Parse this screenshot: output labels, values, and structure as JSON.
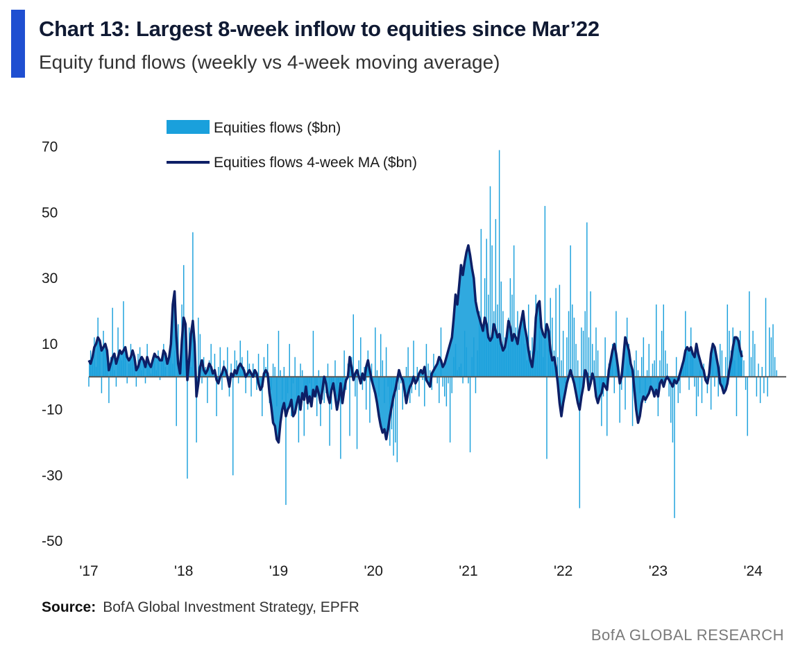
{
  "header": {
    "title": "Chart 13: Largest 8-week inflow to equities since Mar’22",
    "subtitle": "Equity fund flows (weekly vs 4-week moving average)"
  },
  "footer": {
    "source_label": "Source:",
    "source_text": "BofA Global Investment Strategy, EPFR",
    "brand": "BofA GLOBAL RESEARCH"
  },
  "colors": {
    "accent": "#1f4fd1",
    "flows": "#1aa0dc",
    "ma": "#0d1f66",
    "zero_line": "#555555"
  },
  "chart_data": {
    "type": "bar",
    "title": "Chart 13: Largest 8-week inflow to equities since Mar’22",
    "subtitle": "Equity fund flows (weekly vs 4-week moving average)",
    "xlabel": "",
    "ylabel": "",
    "ylim": [
      -50,
      75
    ],
    "yticks": [
      70,
      50,
      30,
      10,
      -10,
      -30,
      -50
    ],
    "xlim": [
      2017,
      2024.35
    ],
    "xticks": [
      {
        "value": 2017,
        "label": "'17"
      },
      {
        "value": 2018,
        "label": "'18"
      },
      {
        "value": 2019,
        "label": "'19"
      },
      {
        "value": 2020,
        "label": "'20"
      },
      {
        "value": 2021,
        "label": "'21"
      },
      {
        "value": 2022,
        "label": "'22"
      },
      {
        "value": 2023,
        "label": "'23"
      },
      {
        "value": 2024,
        "label": "'24"
      }
    ],
    "grid": false,
    "legend_position": "top-left",
    "series": [
      {
        "name": "Equities flows ($bn)",
        "kind": "bar",
        "color": "#1aa0dc",
        "x_start": 2017.0,
        "x_step": 0.01923,
        "values": [
          -3,
          8,
          6,
          12,
          3,
          18,
          10,
          -5,
          14,
          8,
          4,
          -8,
          6,
          21,
          2,
          -3,
          15,
          6,
          5,
          23,
          7,
          -2,
          4,
          10,
          6,
          3,
          -3,
          7,
          9,
          2,
          5,
          -2,
          10,
          4,
          1,
          6,
          5,
          2,
          8,
          -1,
          6,
          10,
          3,
          0,
          7,
          12,
          4,
          8,
          -15,
          16,
          5,
          22,
          34,
          10,
          -31,
          15,
          3,
          44,
          2,
          -20,
          18,
          13,
          -2,
          6,
          3,
          -8,
          5,
          10,
          2,
          7,
          -12,
          3,
          9,
          -4,
          5,
          2,
          9,
          -6,
          4,
          -30,
          8,
          5,
          -2,
          11,
          6,
          3,
          -5,
          8,
          4,
          -6,
          4,
          2,
          -4,
          7,
          0,
          -12,
          6,
          3,
          10,
          -8,
          -4,
          4,
          3,
          -9,
          14,
          2,
          -7,
          3,
          -39,
          -5,
          10,
          -12,
          -2,
          6,
          -9,
          -20,
          4,
          2,
          -18,
          -4,
          -10,
          -2,
          -8,
          14,
          -6,
          -12,
          2,
          -15,
          -7,
          -8,
          -5,
          4,
          -21,
          -10,
          -3,
          5,
          -6,
          -2,
          -25,
          -8,
          8,
          -4,
          4,
          -18,
          6,
          19,
          -6,
          -22,
          5,
          12,
          -4,
          3,
          -10,
          8,
          -14,
          4,
          -2,
          15,
          2,
          -6,
          13,
          5,
          -8,
          9,
          -3,
          -21,
          -16,
          -24,
          -20,
          -26,
          -4,
          -2,
          -10,
          -6,
          3,
          9,
          -8,
          -5,
          11,
          -4,
          3,
          -6,
          2,
          -1,
          -9,
          10,
          4,
          2,
          -4,
          7,
          1,
          -2,
          -8,
          15,
          -3,
          -6,
          -9,
          -2,
          -20,
          -5,
          6,
          10,
          2,
          3,
          4,
          -2,
          14,
          9,
          -2,
          -23,
          6,
          12,
          -5,
          8,
          20,
          45,
          15,
          30,
          42,
          25,
          58,
          40,
          20,
          48,
          22,
          69,
          29,
          20,
          12,
          8,
          18,
          30,
          25,
          40,
          15,
          20,
          10,
          14,
          18,
          10,
          5,
          22,
          8,
          12,
          10,
          25,
          8,
          18,
          14,
          6,
          52,
          -25,
          10,
          24,
          18,
          8,
          27,
          6,
          28,
          5,
          14,
          -2,
          12,
          20,
          40,
          22,
          18,
          10,
          5,
          -40,
          15,
          14,
          20,
          47,
          12,
          26,
          10,
          5,
          15,
          8,
          -5,
          -15,
          -6,
          12,
          -18,
          4,
          6,
          10,
          -5,
          20,
          2,
          -14,
          -4,
          6,
          -10,
          18,
          10,
          2,
          -15,
          5,
          8,
          2,
          -5,
          6,
          12,
          -8,
          2,
          10,
          -3,
          4,
          5,
          22,
          -12,
          5,
          14,
          22,
          8,
          4,
          -6,
          -14,
          -20,
          -43,
          6,
          -8,
          -5,
          4,
          3,
          20,
          8,
          -4,
          15,
          6,
          -3,
          -12,
          -6,
          2,
          -8,
          4,
          0,
          -5,
          3,
          -10,
          6,
          -3,
          2,
          -6,
          10,
          8,
          -4,
          6,
          22,
          14,
          8,
          15,
          5,
          -12,
          12,
          14,
          8,
          5,
          -4,
          -18,
          26,
          6,
          14,
          10,
          -6,
          4,
          -8,
          3,
          -5,
          24,
          -6,
          15,
          12,
          16,
          6,
          2
        ]
      },
      {
        "name": "Equities flows 4-week MA ($bn)",
        "kind": "line",
        "color": "#0d1f66",
        "x_start": 2017.0,
        "x_step": 0.01923,
        "values": [
          5,
          4,
          6,
          9,
          10,
          12,
          11,
          8,
          9,
          10,
          8,
          2,
          4,
          6,
          7,
          4,
          6,
          8,
          7,
          8,
          9,
          6,
          5,
          6,
          8,
          6,
          2,
          3,
          5,
          6,
          5,
          3,
          6,
          4,
          3,
          5,
          7,
          6,
          6,
          5,
          5,
          8,
          7,
          4,
          6,
          10,
          22,
          26,
          12,
          4,
          1,
          11,
          18,
          16,
          -1,
          5,
          13,
          17,
          10,
          -6,
          -2,
          3,
          5,
          2,
          1,
          2,
          4,
          3,
          1,
          2,
          -1,
          -2,
          0,
          1,
          3,
          2,
          0,
          -3,
          1,
          0,
          2,
          1,
          3,
          4,
          3,
          2,
          0,
          1,
          2,
          1,
          0,
          2,
          1,
          -2,
          -4,
          -3,
          1,
          2,
          1,
          -5,
          -9,
          -14,
          -15,
          -19,
          -20,
          -14,
          -10,
          -8,
          -12,
          -10,
          -9,
          -7,
          -12,
          -11,
          -8,
          -6,
          -10,
          -5,
          -7,
          -3,
          -8,
          -6,
          -9,
          -4,
          -6,
          -3,
          -5,
          -8,
          -4,
          0,
          -2,
          -6,
          -8,
          -4,
          -2,
          -6,
          -10,
          -7,
          -2,
          -8,
          -4,
          -1,
          0,
          6,
          3,
          -1,
          1,
          2,
          0,
          -2,
          1,
          -1,
          3,
          5,
          2,
          -1,
          -3,
          -5,
          -8,
          -12,
          -15,
          -17,
          -16,
          -19,
          -16,
          -12,
          -9,
          -6,
          -4,
          -1,
          2,
          0,
          -1,
          -4,
          -8,
          -5,
          -3,
          -2,
          0,
          -2,
          -1,
          1,
          2,
          1,
          3,
          -1,
          -2,
          -3,
          1,
          2,
          3,
          4,
          6,
          5,
          3,
          4,
          6,
          8,
          10,
          12,
          18,
          25,
          22,
          28,
          34,
          31,
          35,
          38,
          40,
          37,
          33,
          30,
          23,
          20,
          18,
          16,
          14,
          18,
          16,
          12,
          11,
          12,
          16,
          14,
          12,
          13,
          10,
          8,
          9,
          12,
          17,
          15,
          11,
          13,
          12,
          10,
          14,
          17,
          20,
          15,
          12,
          8,
          5,
          3,
          8,
          18,
          22,
          23,
          15,
          13,
          12,
          16,
          14,
          8,
          5,
          6,
          3,
          -2,
          -8,
          -12,
          -8,
          -5,
          -2,
          0,
          2,
          0,
          -2,
          -5,
          -8,
          -10,
          -6,
          -3,
          2,
          1,
          -4,
          -2,
          1,
          -1,
          -6,
          -8,
          -6,
          -5,
          -2,
          -3,
          -4,
          2,
          5,
          8,
          10,
          7,
          3,
          -2,
          0,
          6,
          12,
          10,
          8,
          4,
          2,
          -4,
          -10,
          -14,
          -12,
          -8,
          -6,
          -7,
          -6,
          -5,
          -3,
          -4,
          -6,
          -4,
          -6,
          -2,
          -1,
          -3,
          -1,
          0,
          -1,
          -2,
          -3,
          -1,
          -2,
          -1,
          1,
          3,
          5,
          8,
          9,
          8,
          9,
          7,
          6,
          10,
          7,
          5,
          3,
          2,
          -1,
          -2,
          1,
          7,
          10,
          9,
          6,
          3,
          -2,
          -3,
          -5,
          -4,
          -2,
          2,
          5,
          9,
          12,
          12,
          11,
          8,
          6
        ]
      }
    ]
  }
}
